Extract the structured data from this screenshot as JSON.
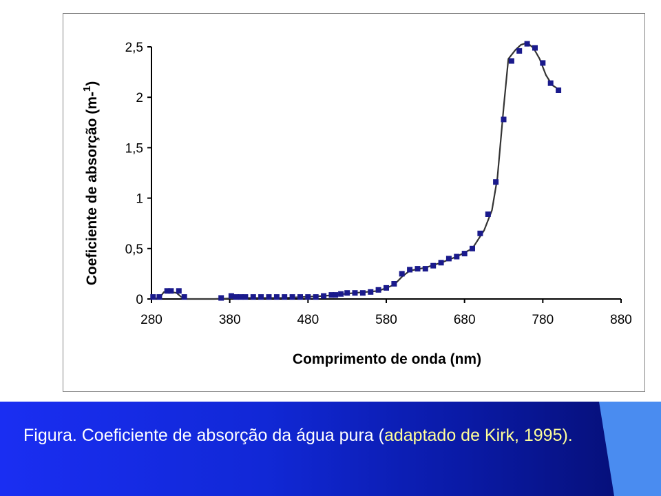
{
  "caption": {
    "main": "Figura. Coeficiente de absorção da água pura (",
    "tail": "adaptado de Kirk, 1995)."
  },
  "colors": {
    "marker": "#1a1a8c",
    "curve": "#333333",
    "caption_band": "#1128d6",
    "caption_accent": "#4a8cf0"
  },
  "chart_data": {
    "type": "line",
    "title": "",
    "xlabel": "Comprimento de onda (nm)",
    "ylabel_main": "Coeficiente de absorção (m-",
    "ylabel_sup": "1",
    "ylabel_close": ")",
    "xlim": [
      280,
      880
    ],
    "ylim": [
      0,
      2.5
    ],
    "x_ticks": [
      280,
      380,
      480,
      580,
      680,
      780,
      880
    ],
    "x_tick_labels": [
      "280",
      "380",
      "480",
      "580",
      "680",
      "780",
      "880"
    ],
    "y_ticks": [
      0,
      0.5,
      1,
      1.5,
      2,
      2.5
    ],
    "y_tick_labels": [
      "0",
      "0,5",
      "1",
      "1,5",
      "2",
      "2,5"
    ],
    "grid": false,
    "legend": "none",
    "series": [
      {
        "marker": "square",
        "x": [
          282,
          290,
          300,
          305,
          315,
          322,
          369,
          382,
          388,
          394,
          400,
          410,
          420,
          430,
          440,
          450,
          460,
          470,
          480,
          490,
          500,
          510,
          515,
          522,
          530,
          540,
          550,
          560,
          570,
          580,
          590,
          600,
          610,
          620,
          630,
          640,
          650,
          660,
          670,
          680,
          690,
          700,
          710,
          720,
          730,
          740,
          750,
          760,
          770,
          780,
          790,
          800
        ],
        "y": [
          0.02,
          0.02,
          0.08,
          0.08,
          0.08,
          0.02,
          0.01,
          0.03,
          0.02,
          0.02,
          0.02,
          0.02,
          0.02,
          0.02,
          0.02,
          0.02,
          0.02,
          0.02,
          0.02,
          0.02,
          0.03,
          0.04,
          0.04,
          0.05,
          0.06,
          0.06,
          0.06,
          0.07,
          0.09,
          0.11,
          0.15,
          0.25,
          0.29,
          0.3,
          0.3,
          0.33,
          0.36,
          0.4,
          0.42,
          0.45,
          0.5,
          0.65,
          0.84,
          1.16,
          1.78,
          2.36,
          2.46,
          2.53,
          2.49,
          2.34,
          2.14,
          2.07
        ]
      }
    ],
    "curve": {
      "x": [
        280,
        290,
        296,
        305,
        312,
        318,
        325,
        340,
        360,
        400,
        450,
        500,
        540,
        570,
        590,
        600,
        610,
        630,
        650,
        670,
        690,
        705,
        715,
        722,
        730,
        736,
        745,
        752,
        760,
        768,
        776,
        784,
        792,
        800
      ],
      "y": [
        0.0,
        0.01,
        0.07,
        0.07,
        0.06,
        0.02,
        0.0,
        0.0,
        0.0,
        0.01,
        0.01,
        0.03,
        0.06,
        0.08,
        0.14,
        0.22,
        0.28,
        0.31,
        0.36,
        0.42,
        0.5,
        0.68,
        0.88,
        1.2,
        1.9,
        2.38,
        2.47,
        2.52,
        2.54,
        2.49,
        2.38,
        2.22,
        2.12,
        2.08
      ]
    }
  }
}
